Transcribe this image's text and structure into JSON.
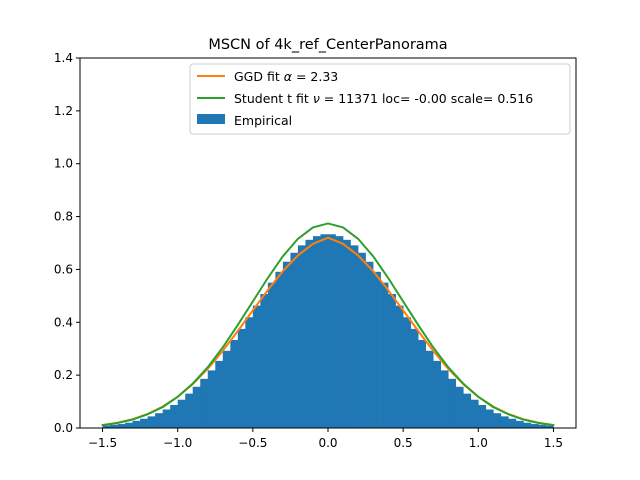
{
  "chart_data": {
    "type": "bar",
    "title": "MSCN of 4k_ref_CenterPanorama",
    "xlabel": "",
    "ylabel": "",
    "xlim": [
      -1.65,
      1.65
    ],
    "ylim": [
      0,
      1.4
    ],
    "xticks": [
      -1.5,
      -1.0,
      -0.5,
      0.0,
      0.5,
      1.0,
      1.5
    ],
    "xtick_labels": [
      "−1.5",
      "−1.0",
      "−0.5",
      "0.0",
      "0.5",
      "1.0",
      "1.5"
    ],
    "yticks": [
      0.0,
      0.2,
      0.4,
      0.6,
      0.8,
      1.0,
      1.2,
      1.4
    ],
    "ytick_labels": [
      "0.0",
      "0.2",
      "0.4",
      "0.6",
      "0.8",
      "1.0",
      "1.2",
      "1.4"
    ],
    "legend_position": "top-right",
    "histogram": {
      "name": "Empirical",
      "color": "#1f77b4",
      "bin_range": [
        -1.5,
        1.5
      ],
      "bin_width": 0.05,
      "values": [
        0.009,
        0.012,
        0.015,
        0.02,
        0.027,
        0.035,
        0.044,
        0.056,
        0.07,
        0.087,
        0.107,
        0.13,
        0.156,
        0.186,
        0.218,
        0.254,
        0.292,
        0.333,
        0.375,
        0.419,
        0.463,
        0.507,
        0.55,
        0.591,
        0.629,
        0.663,
        0.691,
        0.712,
        0.726,
        0.733,
        0.733,
        0.726,
        0.712,
        0.691,
        0.663,
        0.629,
        0.591,
        0.55,
        0.507,
        0.463,
        0.419,
        0.375,
        0.333,
        0.292,
        0.254,
        0.218,
        0.186,
        0.156,
        0.13,
        0.107,
        0.087,
        0.07,
        0.056,
        0.044,
        0.035,
        0.027,
        0.02,
        0.015,
        0.012,
        0.009
      ]
    },
    "series": [
      {
        "name": "GGD fit",
        "legend_prefix": "GGD fit ",
        "legend_symbol": "α",
        "legend_suffix": " = 2.33",
        "color": "#ff7f0e",
        "x": [
          -1.5,
          -1.4,
          -1.3,
          -1.2,
          -1.1,
          -1.0,
          -0.9,
          -0.8,
          -0.7,
          -0.6,
          -0.5,
          -0.4,
          -0.3,
          -0.2,
          -0.1,
          0.0,
          0.1,
          0.2,
          0.3,
          0.4,
          0.5,
          0.6,
          0.7,
          0.8,
          0.9,
          1.0,
          1.1,
          1.2,
          1.3,
          1.4,
          1.5
        ],
        "y": [
          0.011,
          0.02,
          0.033,
          0.053,
          0.081,
          0.118,
          0.166,
          0.224,
          0.292,
          0.367,
          0.445,
          0.522,
          0.594,
          0.653,
          0.697,
          0.72,
          0.697,
          0.653,
          0.594,
          0.522,
          0.445,
          0.367,
          0.292,
          0.224,
          0.166,
          0.118,
          0.081,
          0.053,
          0.033,
          0.02,
          0.011
        ]
      },
      {
        "name": "Student t fit",
        "legend_prefix": "Student t fit ",
        "legend_symbol": "ν",
        "legend_suffix": " = 11371 loc= -0.00 scale= 0.516",
        "color": "#2ca02c",
        "x": [
          -1.5,
          -1.4,
          -1.3,
          -1.2,
          -1.1,
          -1.0,
          -0.9,
          -0.8,
          -0.7,
          -0.6,
          -0.5,
          -0.4,
          -0.3,
          -0.2,
          -0.1,
          0.0,
          0.1,
          0.2,
          0.3,
          0.4,
          0.5,
          0.6,
          0.7,
          0.8,
          0.9,
          1.0,
          1.1,
          1.2,
          1.3,
          1.4,
          1.5
        ],
        "y": [
          0.011,
          0.019,
          0.032,
          0.052,
          0.079,
          0.118,
          0.168,
          0.23,
          0.305,
          0.39,
          0.479,
          0.568,
          0.65,
          0.716,
          0.759,
          0.774,
          0.759,
          0.716,
          0.65,
          0.568,
          0.479,
          0.39,
          0.305,
          0.23,
          0.168,
          0.118,
          0.079,
          0.052,
          0.032,
          0.019,
          0.011
        ]
      }
    ]
  }
}
